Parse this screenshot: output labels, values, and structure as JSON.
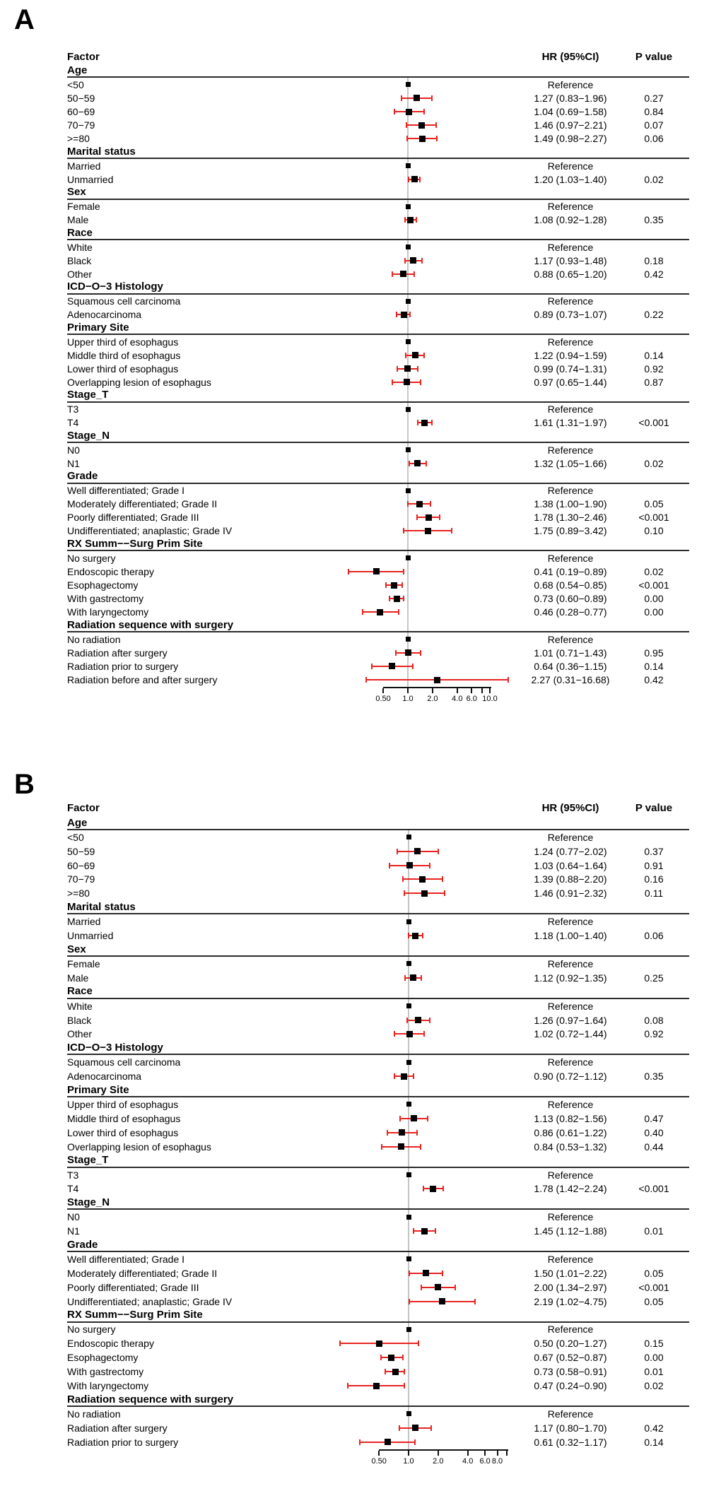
{
  "figure": {
    "background": "#ffffff",
    "colors": {
      "marker": "#000000",
      "ci": "#e8231f",
      "refline": "#c5c5c5",
      "rule": "#2b2b2b",
      "axis": "#111111",
      "text": "#000000"
    }
  },
  "chart_data": [
    {
      "type": "forest",
      "panel_label": "A",
      "columns": {
        "factor": "Factor",
        "hr": "HR (95%CI)",
        "p": "P value"
      },
      "reference_text": "Reference",
      "axis": {
        "scale": "log",
        "ref": 1.0,
        "ticks": [
          0.5,
          1.0,
          2.0,
          4.0,
          6.0,
          8.0,
          10.0
        ],
        "tick_labels": [
          "0.50",
          "1.0",
          "2.0",
          "4.0",
          "6.0",
          "",
          "10.0"
        ]
      },
      "groups": [
        {
          "name": "Age",
          "rows": [
            {
              "label": "<50",
              "ref": true
            },
            {
              "label": "50−59",
              "hr": 1.27,
              "lo": 0.83,
              "hi": 1.96,
              "hr_text": "1.27 (0.83−1.96)",
              "p": "0.27"
            },
            {
              "label": "60−69",
              "hr": 1.04,
              "lo": 0.69,
              "hi": 1.58,
              "hr_text": "1.04 (0.69−1.58)",
              "p": "0.84"
            },
            {
              "label": "70−79",
              "hr": 1.46,
              "lo": 0.97,
              "hi": 2.21,
              "hr_text": "1.46 (0.97−2.21)",
              "p": "0.07"
            },
            {
              "label": ">=80",
              "hr": 1.49,
              "lo": 0.98,
              "hi": 2.27,
              "hr_text": "1.49 (0.98−2.27)",
              "p": "0.06"
            }
          ]
        },
        {
          "name": "Marital status",
          "rows": [
            {
              "label": "Married",
              "ref": true
            },
            {
              "label": "Unmarried",
              "hr": 1.2,
              "lo": 1.03,
              "hi": 1.4,
              "hr_text": "1.20 (1.03−1.40)",
              "p": "0.02"
            }
          ]
        },
        {
          "name": "Sex",
          "rows": [
            {
              "label": "Female",
              "ref": true
            },
            {
              "label": "Male",
              "hr": 1.08,
              "lo": 0.92,
              "hi": 1.28,
              "hr_text": "1.08 (0.92−1.28)",
              "p": "0.35"
            }
          ]
        },
        {
          "name": "Race",
          "rows": [
            {
              "label": "White",
              "ref": true
            },
            {
              "label": "Black",
              "hr": 1.17,
              "lo": 0.93,
              "hi": 1.48,
              "hr_text": "1.17 (0.93−1.48)",
              "p": "0.18"
            },
            {
              "label": "Other",
              "hr": 0.88,
              "lo": 0.65,
              "hi": 1.2,
              "hr_text": "0.88 (0.65−1.20)",
              "p": "0.42"
            }
          ]
        },
        {
          "name": "ICD−O−3 Histology",
          "rows": [
            {
              "label": "Squamous cell carcinoma",
              "ref": true
            },
            {
              "label": "Adenocarcinoma",
              "hr": 0.89,
              "lo": 0.73,
              "hi": 1.07,
              "hr_text": "0.89 (0.73−1.07)",
              "p": "0.22"
            }
          ]
        },
        {
          "name": "Primary Site",
          "rows": [
            {
              "label": "Upper third of esophagus",
              "ref": true
            },
            {
              "label": "Middle third of esophagus",
              "hr": 1.22,
              "lo": 0.94,
              "hi": 1.59,
              "hr_text": "1.22 (0.94−1.59)",
              "p": "0.14"
            },
            {
              "label": "Lower third of esophagus",
              "hr": 0.99,
              "lo": 0.74,
              "hi": 1.31,
              "hr_text": "0.99 (0.74−1.31)",
              "p": "0.92"
            },
            {
              "label": "Overlapping lesion of esophagus",
              "hr": 0.97,
              "lo": 0.65,
              "hi": 1.44,
              "hr_text": "0.97 (0.65−1.44)",
              "p": "0.87"
            }
          ]
        },
        {
          "name": "Stage_T",
          "rows": [
            {
              "label": "T3",
              "ref": true
            },
            {
              "label": "T4",
              "hr": 1.61,
              "lo": 1.31,
              "hi": 1.97,
              "hr_text": "1.61 (1.31−1.97)",
              "p": "<0.001"
            }
          ]
        },
        {
          "name": "Stage_N",
          "rows": [
            {
              "label": "N0",
              "ref": true
            },
            {
              "label": "N1",
              "hr": 1.32,
              "lo": 1.05,
              "hi": 1.66,
              "hr_text": "1.32 (1.05−1.66)",
              "p": "0.02"
            }
          ]
        },
        {
          "name": "Grade",
          "rows": [
            {
              "label": "Well differentiated; Grade I",
              "ref": true
            },
            {
              "label": "Moderately differentiated; Grade II",
              "hr": 1.38,
              "lo": 1.0,
              "hi": 1.9,
              "hr_text": "1.38 (1.00−1.90)",
              "p": "0.05"
            },
            {
              "label": "Poorly differentiated; Grade III",
              "hr": 1.78,
              "lo": 1.3,
              "hi": 2.46,
              "hr_text": "1.78 (1.30−2.46)",
              "p": "<0.001"
            },
            {
              "label": "Undifferentiated; anaplastic; Grade IV",
              "hr": 1.75,
              "lo": 0.89,
              "hi": 3.42,
              "hr_text": "1.75 (0.89−3.42)",
              "p": "0.10"
            }
          ]
        },
        {
          "name": "RX Summ−−Surg Prim Site",
          "rows": [
            {
              "label": "No surgery",
              "ref": true
            },
            {
              "label": "Endoscopic therapy",
              "hr": 0.41,
              "lo": 0.19,
              "hi": 0.89,
              "hr_text": "0.41 (0.19−0.89)",
              "p": "0.02"
            },
            {
              "label": "Esophagectomy",
              "hr": 0.68,
              "lo": 0.54,
              "hi": 0.85,
              "hr_text": "0.68 (0.54−0.85)",
              "p": "<0.001"
            },
            {
              "label": "With gastrectomy",
              "hr": 0.73,
              "lo": 0.6,
              "hi": 0.89,
              "hr_text": "0.73 (0.60−0.89)",
              "p": "0.00"
            },
            {
              "label": "With laryngectomy",
              "hr": 0.46,
              "lo": 0.28,
              "hi": 0.77,
              "hr_text": "0.46 (0.28−0.77)",
              "p": "0.00"
            }
          ]
        },
        {
          "name": "Radiation sequence with surgery",
          "rows": [
            {
              "label": "No radiation",
              "ref": true
            },
            {
              "label": "Radiation after surgery",
              "hr": 1.01,
              "lo": 0.71,
              "hi": 1.43,
              "hr_text": "1.01 (0.71−1.43)",
              "p": "0.95"
            },
            {
              "label": "Radiation prior to surgery",
              "hr": 0.64,
              "lo": 0.36,
              "hi": 1.15,
              "hr_text": "0.64 (0.36−1.15)",
              "p": "0.14"
            },
            {
              "label": "Radiation before and after surgery",
              "hr": 2.27,
              "lo": 0.31,
              "hi": 16.68,
              "hr_text": "2.27 (0.31−16.68)",
              "p": "0.42"
            }
          ]
        }
      ]
    },
    {
      "type": "forest",
      "panel_label": "B",
      "columns": {
        "factor": "Factor",
        "hr": "HR (95%CI)",
        "p": "P value"
      },
      "reference_text": "Reference",
      "axis": {
        "scale": "log",
        "ref": 1.0,
        "ticks": [
          0.5,
          1.0,
          2.0,
          4.0,
          6.0,
          8.0,
          10.0
        ],
        "tick_labels": [
          "0.50",
          "1.0",
          "2.0",
          "4.0",
          "6.0",
          "8.0",
          ""
        ]
      },
      "groups": [
        {
          "name": "Age",
          "rows": [
            {
              "label": "<50",
              "ref": true
            },
            {
              "label": "50−59",
              "hr": 1.24,
              "lo": 0.77,
              "hi": 2.02,
              "hr_text": "1.24 (0.77−2.02)",
              "p": "0.37"
            },
            {
              "label": "60−69",
              "hr": 1.03,
              "lo": 0.64,
              "hi": 1.64,
              "hr_text": "1.03 (0.64−1.64)",
              "p": "0.91"
            },
            {
              "label": "70−79",
              "hr": 1.39,
              "lo": 0.88,
              "hi": 2.2,
              "hr_text": "1.39 (0.88−2.20)",
              "p": "0.16"
            },
            {
              "label": ">=80",
              "hr": 1.46,
              "lo": 0.91,
              "hi": 2.32,
              "hr_text": "1.46 (0.91−2.32)",
              "p": "0.11"
            }
          ]
        },
        {
          "name": "Marital status",
          "rows": [
            {
              "label": "Married",
              "ref": true
            },
            {
              "label": "Unmarried",
              "hr": 1.18,
              "lo": 1.0,
              "hi": 1.4,
              "hr_text": "1.18 (1.00−1.40)",
              "p": "0.06"
            }
          ]
        },
        {
          "name": "Sex",
          "rows": [
            {
              "label": "Female",
              "ref": true
            },
            {
              "label": "Male",
              "hr": 1.12,
              "lo": 0.92,
              "hi": 1.35,
              "hr_text": "1.12 (0.92−1.35)",
              "p": "0.25"
            }
          ]
        },
        {
          "name": "Race",
          "rows": [
            {
              "label": "White",
              "ref": true
            },
            {
              "label": "Black",
              "hr": 1.26,
              "lo": 0.97,
              "hi": 1.64,
              "hr_text": "1.26 (0.97−1.64)",
              "p": "0.08"
            },
            {
              "label": "Other",
              "hr": 1.02,
              "lo": 0.72,
              "hi": 1.44,
              "hr_text": "1.02 (0.72−1.44)",
              "p": "0.92"
            }
          ]
        },
        {
          "name": "ICD−O−3 Histology",
          "rows": [
            {
              "label": "Squamous cell carcinoma",
              "ref": true
            },
            {
              "label": "Adenocarcinoma",
              "hr": 0.9,
              "lo": 0.72,
              "hi": 1.12,
              "hr_text": "0.90 (0.72−1.12)",
              "p": "0.35"
            }
          ]
        },
        {
          "name": "Primary Site",
          "rows": [
            {
              "label": "Upper third of esophagus",
              "ref": true
            },
            {
              "label": "Middle third of esophagus",
              "hr": 1.13,
              "lo": 0.82,
              "hi": 1.56,
              "hr_text": "1.13 (0.82−1.56)",
              "p": "0.47"
            },
            {
              "label": "Lower third of esophagus",
              "hr": 0.86,
              "lo": 0.61,
              "hi": 1.22,
              "hr_text": "0.86 (0.61−1.22)",
              "p": "0.40"
            },
            {
              "label": "Overlapping lesion of esophagus",
              "hr": 0.84,
              "lo": 0.53,
              "hi": 1.32,
              "hr_text": "0.84 (0.53−1.32)",
              "p": "0.44"
            }
          ]
        },
        {
          "name": "Stage_T",
          "rows": [
            {
              "label": "T3",
              "ref": true
            },
            {
              "label": "T4",
              "hr": 1.78,
              "lo": 1.42,
              "hi": 2.24,
              "hr_text": "1.78 (1.42−2.24)",
              "p": "<0.001"
            }
          ]
        },
        {
          "name": "Stage_N",
          "rows": [
            {
              "label": "N0",
              "ref": true
            },
            {
              "label": "N1",
              "hr": 1.45,
              "lo": 1.12,
              "hi": 1.88,
              "hr_text": "1.45 (1.12−1.88)",
              "p": "0.01"
            }
          ]
        },
        {
          "name": "Grade",
          "rows": [
            {
              "label": "Well differentiated; Grade I",
              "ref": true
            },
            {
              "label": "Moderately differentiated; Grade II",
              "hr": 1.5,
              "lo": 1.01,
              "hi": 2.22,
              "hr_text": "1.50 (1.01−2.22)",
              "p": "0.05"
            },
            {
              "label": "Poorly differentiated; Grade III",
              "hr": 2.0,
              "lo": 1.34,
              "hi": 2.97,
              "hr_text": "2.00 (1.34−2.97)",
              "p": "<0.001"
            },
            {
              "label": "Undifferentiated; anaplastic; Grade IV",
              "hr": 2.19,
              "lo": 1.02,
              "hi": 4.75,
              "hr_text": "2.19 (1.02−4.75)",
              "p": "0.05"
            }
          ]
        },
        {
          "name": "RX Summ−−Surg Prim Site",
          "rows": [
            {
              "label": "No surgery",
              "ref": true
            },
            {
              "label": "Endoscopic therapy",
              "hr": 0.5,
              "lo": 0.2,
              "hi": 1.27,
              "hr_text": "0.50 (0.20−1.27)",
              "p": "0.15"
            },
            {
              "label": "Esophagectomy",
              "hr": 0.67,
              "lo": 0.52,
              "hi": 0.87,
              "hr_text": "0.67 (0.52−0.87)",
              "p": "0.00"
            },
            {
              "label": "With gastrectomy",
              "hr": 0.73,
              "lo": 0.58,
              "hi": 0.91,
              "hr_text": "0.73 (0.58−0.91)",
              "p": "0.01"
            },
            {
              "label": "With laryngectomy",
              "hr": 0.47,
              "lo": 0.24,
              "hi": 0.9,
              "hr_text": "0.47 (0.24−0.90)",
              "p": "0.02"
            }
          ]
        },
        {
          "name": "Radiation sequence with surgery",
          "rows": [
            {
              "label": "No radiation",
              "ref": true
            },
            {
              "label": "Radiation after surgery",
              "hr": 1.17,
              "lo": 0.8,
              "hi": 1.7,
              "hr_text": "1.17 (0.80−1.70)",
              "p": "0.42"
            },
            {
              "label": "Radiation prior to surgery",
              "hr": 0.61,
              "lo": 0.32,
              "hi": 1.17,
              "hr_text": "0.61 (0.32−1.17)",
              "p": "0.14"
            }
          ]
        }
      ]
    }
  ]
}
